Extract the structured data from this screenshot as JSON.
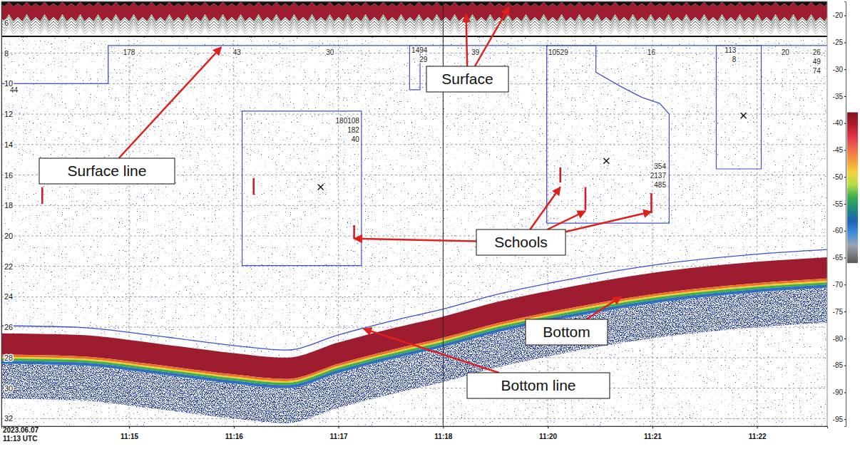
{
  "chart_data": {
    "type": "echogram",
    "start_label": [
      "2023.06.07",
      "11:13 UTC"
    ],
    "xlim": [
      13.78,
      22.67
    ],
    "x_gap": [
      18,
      19
    ],
    "xticks": [
      {
        "value": 15,
        "label": "11:15"
      },
      {
        "value": 16,
        "label": "11:16"
      },
      {
        "value": 17,
        "label": "11:17"
      },
      {
        "value": 18,
        "label": "11:18"
      },
      {
        "value": 20,
        "label": "11:20"
      },
      {
        "value": 21,
        "label": "11:21"
      },
      {
        "value": 22,
        "label": "11:22"
      }
    ],
    "ylim": [
      4.6,
      32.5
    ],
    "yticks": [
      6,
      8,
      10,
      12,
      14,
      16,
      18,
      20,
      22,
      24,
      26,
      28,
      30,
      32
    ],
    "grid": true,
    "colorbar": {
      "lim": [
        -17.4,
        -96.3
      ],
      "ticks": [
        -20,
        -25,
        -30,
        -35,
        -40,
        -45,
        -50,
        -55,
        -60,
        -65,
        -70,
        -75,
        -80,
        -85,
        -90,
        -95
      ],
      "color_range": [
        -38,
        -66
      ]
    },
    "surface_line": {
      "x": [
        13.78,
        14.8,
        14.8,
        22.67
      ],
      "depth": [
        10.0,
        10.0,
        7.5,
        7.5
      ],
      "color": "#3f4fd0",
      "labels": [
        {
          "x": 13.9,
          "lines": [
            "44"
          ]
        },
        {
          "x": 15.0,
          "lines": [
            "178"
          ]
        },
        {
          "x": 16.03,
          "lines": [
            "43"
          ]
        },
        {
          "x": 16.92,
          "lines": [
            "30"
          ]
        },
        {
          "x": 19.31,
          "lines": [
            "39"
          ]
        },
        {
          "x": 20.1,
          "lines": [
            "10529"
          ]
        },
        {
          "x": 20.99,
          "lines": [
            "16"
          ]
        },
        {
          "x": 22.27,
          "lines": [
            "20"
          ]
        },
        {
          "x": 22.57,
          "lines": [
            "26",
            "49",
            "74"
          ]
        }
      ]
    },
    "bottom_line": {
      "x": [
        13.78,
        14.5,
        15.3,
        16.0,
        16.5,
        17.0,
        17.5,
        18.0,
        19.54,
        20.02,
        21.03,
        22.0,
        22.67
      ],
      "depth": [
        25.9,
        26.0,
        26.6,
        27.2,
        27.5,
        26.5,
        25.6,
        24.8,
        23.8,
        23.1,
        21.9,
        21.2,
        20.9
      ],
      "color": "#3f4fd0"
    },
    "region_color": "#4651c8",
    "regions": [
      {
        "x": [
          17.68,
          17.78,
          17.78,
          17.68
        ],
        "depth": [
          7.5,
          7.5,
          10.4,
          10.4
        ],
        "labels": [
          "1494",
          "29"
        ],
        "label_x": 17.85,
        "label_depth": 7.95
      },
      {
        "x": [
          16.08,
          17.22,
          17.22,
          16.08
        ],
        "depth": [
          11.8,
          11.8,
          21.95,
          21.95
        ],
        "labels": [
          "180108",
          "182",
          "40"
        ],
        "label_x": 17.2,
        "label_depth": 12.6,
        "marker": "x",
        "center_x": 16.83,
        "center_depth": 16.8
      },
      {
        "x": [
          19.99,
          20.46,
          20.46,
          20.7,
          20.9,
          21.07,
          21.16,
          21.16,
          19.99
        ],
        "depth": [
          7.5,
          7.5,
          9.25,
          10.2,
          10.9,
          11.3,
          12.0,
          19.16,
          19.16
        ],
        "labels": [
          "354",
          "2137",
          "485"
        ],
        "label_x": 21.13,
        "label_depth": 15.6,
        "marker": "x",
        "center_x": 20.56,
        "center_depth": 15.07
      },
      {
        "x": [
          21.61,
          22.04,
          22.04,
          21.61
        ],
        "depth": [
          7.5,
          7.5,
          15.6,
          15.6
        ],
        "labels": [
          "113",
          "8"
        ],
        "label_x": 21.8,
        "label_depth": 7.95,
        "marker": "x",
        "center_x": 21.87,
        "center_depth": 12.1
      }
    ],
    "school_color": "#c8202c",
    "schools": [
      {
        "x": 14.17,
        "depth": [
          16.8,
          17.9
        ]
      },
      {
        "x": 16.19,
        "depth": [
          16.2,
          17.3
        ]
      },
      {
        "x": 17.15,
        "depth": [
          19.3,
          20.2
        ]
      },
      {
        "x": 20.12,
        "depth": [
          15.5,
          16.5
        ]
      },
      {
        "x": 20.36,
        "depth": [
          16.8,
          18.3
        ]
      },
      {
        "x": 20.99,
        "depth": [
          17.2,
          18.5
        ]
      }
    ],
    "annotations": [
      {
        "text": "Surface line",
        "targets": [
          {
            "x": 15.88,
            "depth": 7.6
          }
        ]
      },
      {
        "text": "Surface",
        "targets": [
          {
            "x": 19.22,
            "depth": 5.44
          },
          {
            "x": 19.63,
            "depth": 4.97
          }
        ]
      },
      {
        "text": "Schools",
        "targets": [
          {
            "x": 17.15,
            "depth": 20.18
          },
          {
            "x": 20.12,
            "depth": 16.79
          },
          {
            "x": 20.36,
            "depth": 18.37
          },
          {
            "x": 20.99,
            "depth": 18.41
          }
        ]
      },
      {
        "text": "Bottom",
        "targets": [
          {
            "x": 20.7,
            "depth": 24.0
          }
        ]
      },
      {
        "text": "Bottom line",
        "targets": [
          {
            "x": 17.24,
            "depth": 26.1
          }
        ]
      }
    ]
  }
}
